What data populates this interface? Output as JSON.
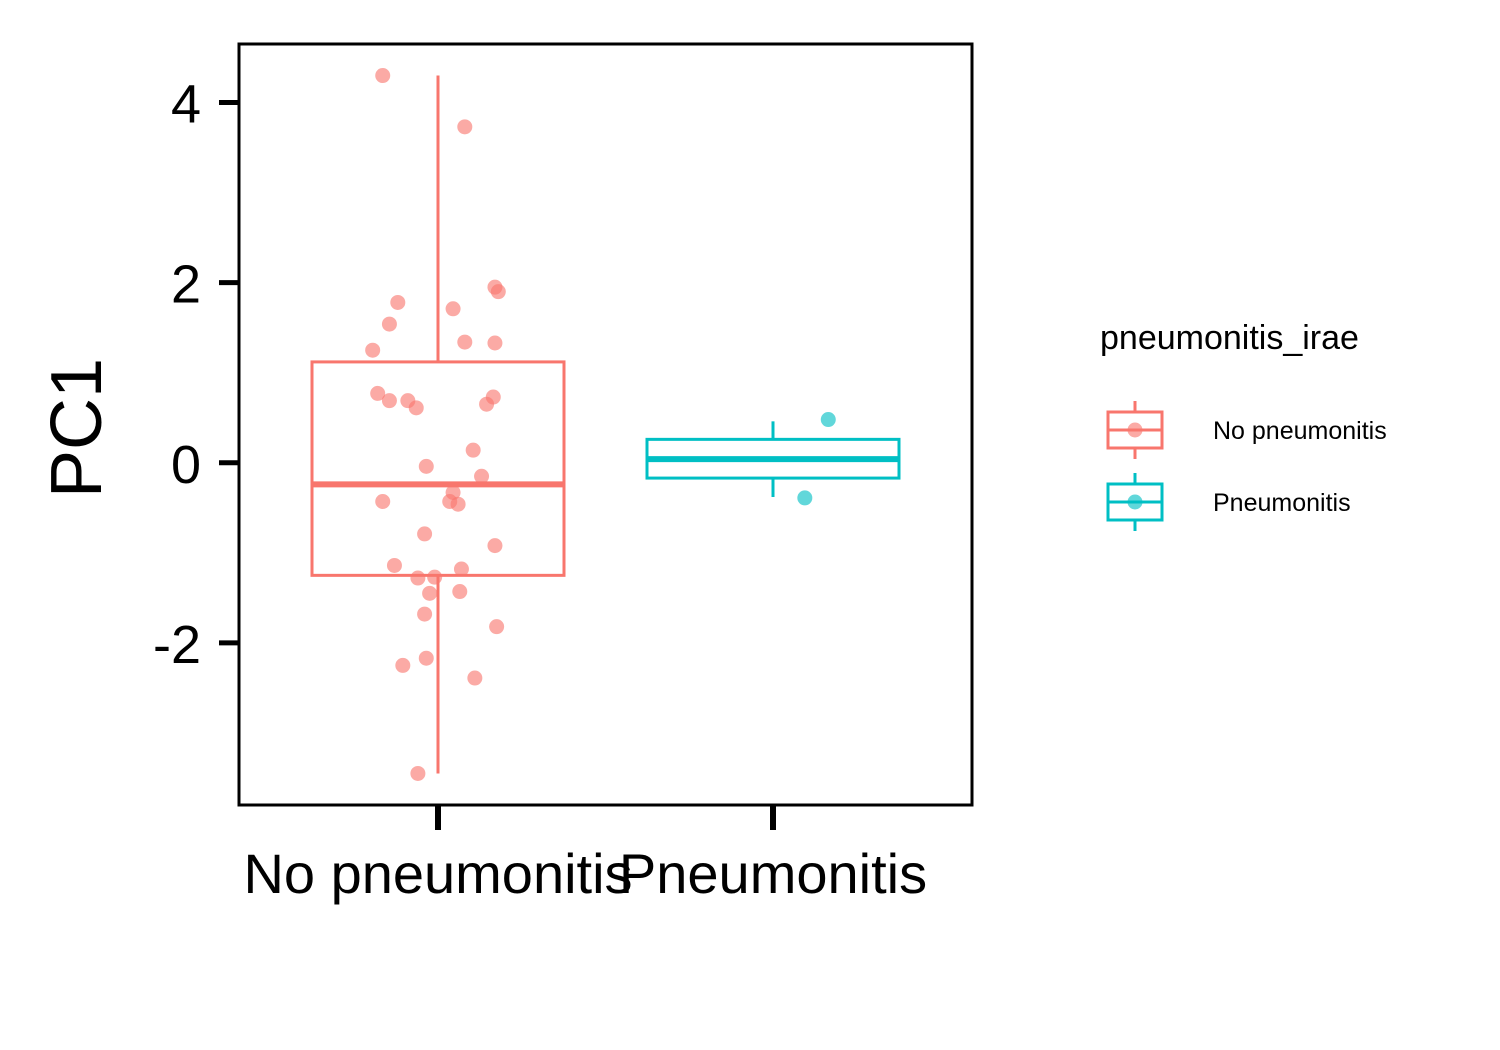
{
  "chart_data": {
    "type": "box",
    "ylabel": "PC1",
    "xlabel": "",
    "ylim": [
      -3.8,
      4.65
    ],
    "yticks": [
      4,
      2,
      0,
      -2
    ],
    "ytick_labels": [
      "4",
      "2",
      "0",
      "-2"
    ],
    "categories": [
      "No pneumonitis",
      "Pneumonitis"
    ],
    "grid": false,
    "legend": {
      "title": "pneumonitis_irae",
      "placement": "right",
      "entries": [
        "No pneumonitis",
        "Pneumonitis"
      ]
    },
    "colors": {
      "No pneumonitis": "#F8766D",
      "Pneumonitis": "#00BFC4"
    },
    "boxes": [
      {
        "category": "No pneumonitis",
        "q1": -1.25,
        "median": -0.24,
        "q3": 1.12,
        "whisker_low": -3.45,
        "whisker_high": 4.3
      },
      {
        "category": "Pneumonitis",
        "q1": -0.17,
        "median": 0.04,
        "q3": 0.26,
        "whisker_low": -0.38,
        "whisker_high": 0.46
      }
    ],
    "points": [
      {
        "category": "No pneumonitis",
        "jitter": -0.33,
        "y": 4.3
      },
      {
        "category": "No pneumonitis",
        "jitter": 0.16,
        "y": 3.73
      },
      {
        "category": "No pneumonitis",
        "jitter": 0.34,
        "y": 1.95
      },
      {
        "category": "No pneumonitis",
        "jitter": 0.36,
        "y": 1.9
      },
      {
        "category": "No pneumonitis",
        "jitter": -0.24,
        "y": 1.78
      },
      {
        "category": "No pneumonitis",
        "jitter": 0.09,
        "y": 1.71
      },
      {
        "category": "No pneumonitis",
        "jitter": -0.29,
        "y": 1.54
      },
      {
        "category": "No pneumonitis",
        "jitter": 0.16,
        "y": 1.34
      },
      {
        "category": "No pneumonitis",
        "jitter": 0.34,
        "y": 1.33
      },
      {
        "category": "No pneumonitis",
        "jitter": -0.39,
        "y": 1.25
      },
      {
        "category": "No pneumonitis",
        "jitter": -0.36,
        "y": 0.77
      },
      {
        "category": "No pneumonitis",
        "jitter": 0.33,
        "y": 0.73
      },
      {
        "category": "No pneumonitis",
        "jitter": -0.29,
        "y": 0.69
      },
      {
        "category": "No pneumonitis",
        "jitter": -0.18,
        "y": 0.69
      },
      {
        "category": "No pneumonitis",
        "jitter": 0.29,
        "y": 0.65
      },
      {
        "category": "No pneumonitis",
        "jitter": -0.13,
        "y": 0.61
      },
      {
        "category": "No pneumonitis",
        "jitter": 0.21,
        "y": 0.14
      },
      {
        "category": "No pneumonitis",
        "jitter": -0.07,
        "y": -0.04
      },
      {
        "category": "No pneumonitis",
        "jitter": 0.26,
        "y": -0.15
      },
      {
        "category": "No pneumonitis",
        "jitter": 0.09,
        "y": -0.33
      },
      {
        "category": "No pneumonitis",
        "jitter": -0.33,
        "y": -0.43
      },
      {
        "category": "No pneumonitis",
        "jitter": 0.07,
        "y": -0.43
      },
      {
        "category": "No pneumonitis",
        "jitter": 0.12,
        "y": -0.46
      },
      {
        "category": "No pneumonitis",
        "jitter": -0.08,
        "y": -0.79
      },
      {
        "category": "No pneumonitis",
        "jitter": 0.34,
        "y": -0.92
      },
      {
        "category": "No pneumonitis",
        "jitter": -0.26,
        "y": -1.14
      },
      {
        "category": "No pneumonitis",
        "jitter": 0.14,
        "y": -1.18
      },
      {
        "category": "No pneumonitis",
        "jitter": -0.12,
        "y": -1.28
      },
      {
        "category": "No pneumonitis",
        "jitter": -0.02,
        "y": -1.27
      },
      {
        "category": "No pneumonitis",
        "jitter": -0.05,
        "y": -1.45
      },
      {
        "category": "No pneumonitis",
        "jitter": 0.13,
        "y": -1.43
      },
      {
        "category": "No pneumonitis",
        "jitter": -0.08,
        "y": -1.68
      },
      {
        "category": "No pneumonitis",
        "jitter": 0.35,
        "y": -1.82
      },
      {
        "category": "No pneumonitis",
        "jitter": -0.07,
        "y": -2.17
      },
      {
        "category": "No pneumonitis",
        "jitter": -0.21,
        "y": -2.25
      },
      {
        "category": "No pneumonitis",
        "jitter": 0.22,
        "y": -2.39
      },
      {
        "category": "No pneumonitis",
        "jitter": -0.12,
        "y": -3.45
      },
      {
        "category": "Pneumonitis",
        "jitter": 0.33,
        "y": 0.48
      },
      {
        "category": "Pneumonitis",
        "jitter": 0.19,
        "y": -0.39
      }
    ]
  }
}
